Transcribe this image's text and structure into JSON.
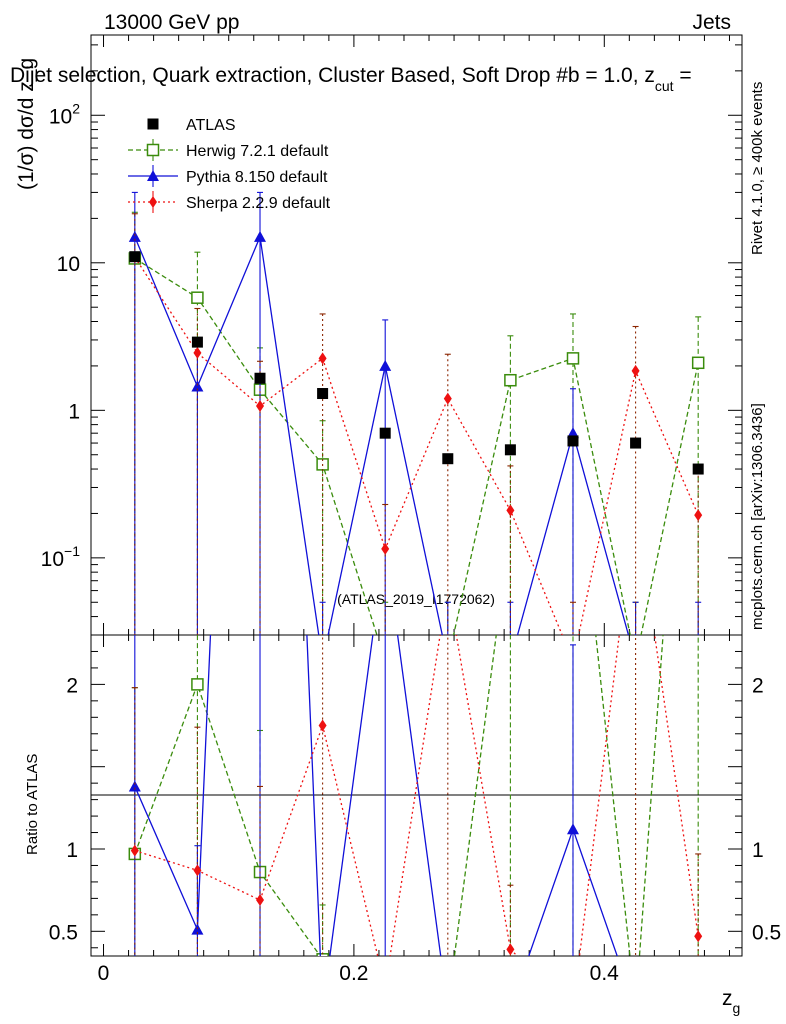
{
  "header": {
    "energy_label": "13000 GeV pp",
    "category_label": "Jets",
    "title": "Dijet selection, Quark extraction, Cluster Based, Soft Drop #b = 1.0, z",
    "title_sub": "cut",
    "title_tail": " ="
  },
  "side_labels": {
    "rivet": "Rivet 4.1.0, ≥ 400k events",
    "mcplots": "mcplots.cern.ch [arXiv:1306.3436]"
  },
  "watermark": "(ATLAS_2019_I1772062)",
  "legend": [
    {
      "key": "atlas",
      "label": "ATLAS"
    },
    {
      "key": "herwig",
      "label": "Herwig 7.2.1 default"
    },
    {
      "key": "pythia",
      "label": "Pythia 8.150 default"
    },
    {
      "key": "sherpa",
      "label": "Sherpa 2.2.9 default"
    }
  ],
  "colors": {
    "atlas": "#000000",
    "herwig": "#3a8c0c",
    "pythia": "#1010d8",
    "sherpa": "#ee1111",
    "sherpa_err": "#8b2500"
  },
  "chart_data": {
    "type": "scatter",
    "main": {
      "ylabel": "(1/σ) dσ/d z_g",
      "yscale": "log",
      "ylim": [
        0.03,
        350
      ],
      "yticks": [
        {
          "value": 0.1,
          "label": "10",
          "sup": "−1"
        },
        {
          "value": 1,
          "label": "1",
          "sup": ""
        },
        {
          "value": 10,
          "label": "10",
          "sup": ""
        },
        {
          "value": 100,
          "label": "10",
          "sup": "2"
        }
      ]
    },
    "ratio": {
      "ylabel": "Ratio to ATLAS",
      "ylim": [
        0.35,
        2.3
      ],
      "yticks": [
        {
          "value": 0.5,
          "label": "0.5"
        },
        {
          "value": 1,
          "label": "1"
        },
        {
          "value": 2,
          "label": "2"
        }
      ]
    },
    "xlabel": "z",
    "xlabel_sub": "g",
    "xlim": [
      -0.01,
      0.51
    ],
    "xticks": [
      {
        "value": 0,
        "label": "0"
      },
      {
        "value": 0.2,
        "label": "0.2"
      },
      {
        "value": 0.4,
        "label": "0.4"
      }
    ],
    "x": [
      0.025,
      0.075,
      0.125,
      0.175,
      0.225,
      0.275,
      0.325,
      0.375,
      0.425,
      0.475
    ],
    "series": [
      {
        "key": "atlas",
        "name": "ATLAS",
        "values": [
          11.0,
          2.9,
          1.65,
          1.3,
          0.7,
          0.47,
          0.54,
          0.62,
          0.6,
          0.4
        ]
      },
      {
        "key": "herwig",
        "name": "Herwig 7.2.1 default",
        "values": [
          10.7,
          5.8,
          1.38,
          0.43,
          0.02,
          0.02,
          1.6,
          2.25,
          0.02,
          2.1
        ],
        "err_up": [
          22.0,
          11.8,
          2.65,
          0.85,
          0.05,
          0.05,
          3.2,
          4.5,
          0.05,
          4.3
        ],
        "ratio": [
          0.97,
          2.0,
          0.86,
          0.33,
          0.03,
          0.04,
          2.96,
          3.6,
          0.03,
          5.2
        ],
        "ratio_up": [
          1.98,
          4.0,
          1.72,
          0.66,
          0.06,
          0.08,
          5.9,
          7.2,
          0.06,
          10.4
        ]
      },
      {
        "key": "pythia",
        "name": "Pythia 8.150 default",
        "values": [
          15.0,
          1.45,
          15.0,
          0.02,
          2.0,
          0.02,
          0.02,
          0.7,
          0.02,
          0.02
        ],
        "err_up": [
          30.0,
          2.9,
          30.0,
          0.05,
          4.1,
          0.05,
          0.05,
          1.4,
          0.05,
          0.05
        ],
        "ratio": [
          1.38,
          0.51,
          9.1,
          0.02,
          2.86,
          0.03,
          0.03,
          1.12,
          0.03,
          0.03
        ],
        "ratio_up": [
          2.76,
          1.02,
          18.2,
          0.04,
          5.7,
          0.06,
          0.06,
          2.24,
          0.06,
          0.06
        ]
      },
      {
        "key": "sherpa",
        "name": "Sherpa 2.2.9 default",
        "values": [
          10.9,
          2.45,
          1.07,
          2.25,
          0.115,
          1.2,
          0.21,
          0.02,
          1.85,
          0.195
        ],
        "err_up": [
          21.5,
          4.9,
          2.15,
          4.5,
          0.23,
          2.4,
          0.42,
          0.05,
          3.7,
          0.39
        ],
        "ratio": [
          0.99,
          0.87,
          0.69,
          1.75,
          0.16,
          2.6,
          0.39,
          0.03,
          3.1,
          0.47
        ],
        "ratio_up": [
          1.98,
          1.74,
          1.38,
          3.5,
          0.32,
          5.2,
          0.78,
          0.06,
          6.2,
          0.97
        ]
      }
    ]
  }
}
